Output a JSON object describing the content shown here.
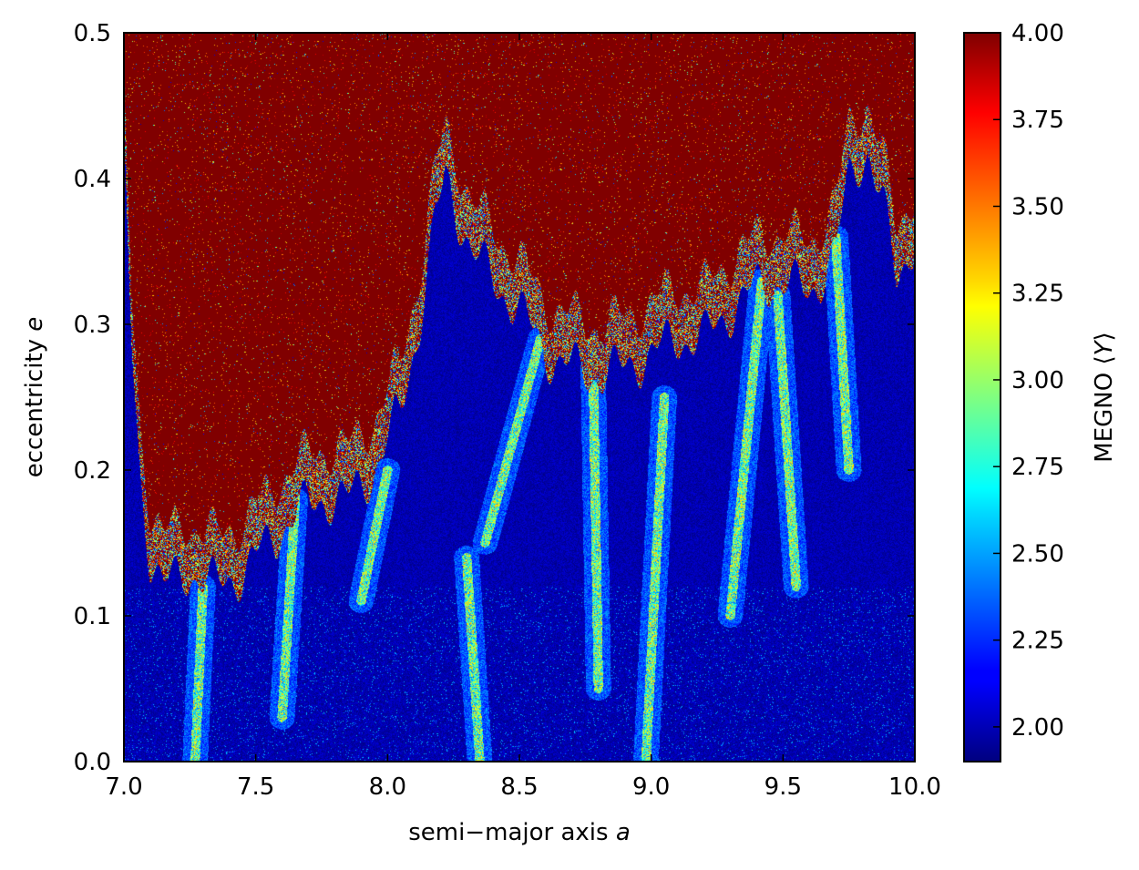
{
  "chart_data": {
    "type": "heatmap",
    "title": "",
    "xlabel": {
      "prefix": "semi−major axis ",
      "var": "a"
    },
    "ylabel": {
      "prefix": "eccentricity ",
      "var": "e"
    },
    "xlim": [
      7.0,
      10.0
    ],
    "ylim": [
      0.0,
      0.5
    ],
    "x_ticks": [
      "7.0",
      "7.5",
      "8.0",
      "8.5",
      "9.0",
      "9.5",
      "10.0"
    ],
    "y_ticks": [
      "0.0",
      "0.1",
      "0.2",
      "0.3",
      "0.4",
      "0.5"
    ],
    "colorbar": {
      "label": {
        "prefix": "MEGNO ⟨",
        "var": "Y",
        "suffix": "⟩"
      },
      "range": [
        1.9,
        4.0
      ],
      "ticks": [
        "2.00",
        "2.25",
        "2.50",
        "2.75",
        "3.00",
        "3.25",
        "3.50",
        "3.75",
        "4.00"
      ],
      "colormap": "jet"
    },
    "grid": false,
    "regions": {
      "chaotic_value": 4.0,
      "regular_value": 2.0,
      "chaos_boundary": [
        [
          7.0,
          0.44
        ],
        [
          7.03,
          0.3
        ],
        [
          7.06,
          0.22
        ],
        [
          7.1,
          0.16
        ],
        [
          7.15,
          0.14
        ],
        [
          7.25,
          0.15
        ],
        [
          7.35,
          0.14
        ],
        [
          7.45,
          0.15
        ],
        [
          7.55,
          0.17
        ],
        [
          7.65,
          0.19
        ],
        [
          7.75,
          0.2
        ],
        [
          7.85,
          0.2
        ],
        [
          7.95,
          0.22
        ],
        [
          8.05,
          0.26
        ],
        [
          8.12,
          0.32
        ],
        [
          8.18,
          0.39
        ],
        [
          8.22,
          0.42
        ],
        [
          8.26,
          0.4
        ],
        [
          8.32,
          0.37
        ],
        [
          8.4,
          0.35
        ],
        [
          8.5,
          0.33
        ],
        [
          8.6,
          0.3
        ],
        [
          8.7,
          0.29
        ],
        [
          8.8,
          0.285
        ],
        [
          8.9,
          0.29
        ],
        [
          9.0,
          0.3
        ],
        [
          9.1,
          0.31
        ],
        [
          9.2,
          0.31
        ],
        [
          9.3,
          0.33
        ],
        [
          9.4,
          0.345
        ],
        [
          9.5,
          0.35
        ],
        [
          9.6,
          0.34
        ],
        [
          9.7,
          0.37
        ],
        [
          9.75,
          0.42
        ],
        [
          9.82,
          0.44
        ],
        [
          9.88,
          0.4
        ],
        [
          9.93,
          0.35
        ],
        [
          10.0,
          0.38
        ]
      ],
      "resonance_arms": [
        [
          7.27,
          0.0,
          7.3,
          0.12
        ],
        [
          7.6,
          0.03,
          7.65,
          0.18
        ],
        [
          7.9,
          0.11,
          8.0,
          0.2
        ],
        [
          8.35,
          0.0,
          8.3,
          0.14
        ],
        [
          8.37,
          0.15,
          8.58,
          0.29
        ],
        [
          8.8,
          0.05,
          8.78,
          0.27
        ],
        [
          8.98,
          0.0,
          9.05,
          0.25
        ],
        [
          9.3,
          0.1,
          9.42,
          0.33
        ],
        [
          9.55,
          0.12,
          9.48,
          0.32
        ],
        [
          9.75,
          0.2,
          9.7,
          0.36
        ]
      ]
    }
  }
}
